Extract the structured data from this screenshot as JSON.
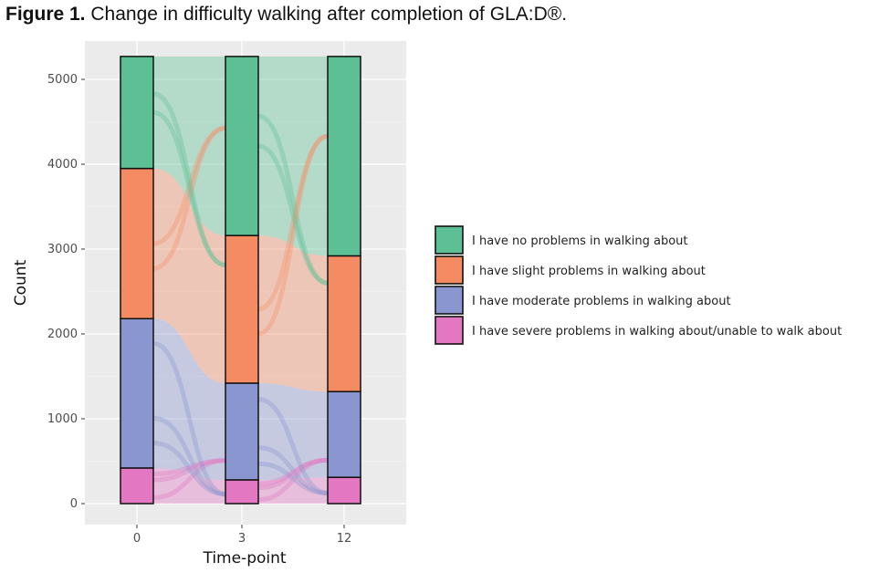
{
  "caption": {
    "label": "Figure 1.",
    "text": "Change in difficulty walking after completion of GLA:D®."
  },
  "chart_data": {
    "type": "bar",
    "subtype": "stacked-alluvial",
    "categories": [
      "0",
      "3",
      "12"
    ],
    "xlabel": "Time-point",
    "ylabel": "Count",
    "ylim": [
      0,
      5400
    ],
    "yticks": [
      0,
      1000,
      2000,
      3000,
      4000,
      5000
    ],
    "grid": true,
    "legend_position": "right",
    "series": [
      {
        "name": "I have severe problems in walking about/unable to walk about",
        "color": "#E377C2",
        "values": [
          420,
          280,
          310
        ]
      },
      {
        "name": "I have moderate problems in walking about",
        "color": "#8A96CF",
        "values": [
          1760,
          1140,
          1010
        ]
      },
      {
        "name": "I have slight problems in walking about",
        "color": "#F58B63",
        "values": [
          1770,
          1740,
          1600
        ]
      },
      {
        "name": "I have no problems in walking about",
        "color": "#5DBF95",
        "values": [
          1320,
          2110,
          2350
        ]
      }
    ]
  }
}
